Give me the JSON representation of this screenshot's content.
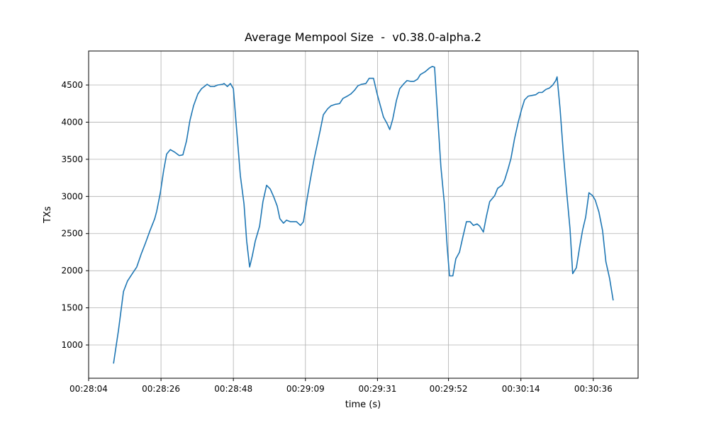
{
  "chart_data": {
    "type": "line",
    "title": "Average Mempool Size  -  v0.38.0-alpha.2",
    "x_label": "time (s)",
    "y_label": "TXs",
    "grid": true,
    "xlim": [
      1684,
      1849.5
    ],
    "ylim": [
      552,
      4958
    ],
    "xticks": [
      {
        "value": 1684,
        "label": "00:28:04"
      },
      {
        "value": 1705.8,
        "label": "00:28:26"
      },
      {
        "value": 1727.6,
        "label": "00:28:48"
      },
      {
        "value": 1749.3,
        "label": "00:29:09"
      },
      {
        "value": 1771,
        "label": "00:29:31"
      },
      {
        "value": 1792.4,
        "label": "00:29:52"
      },
      {
        "value": 1814.2,
        "label": "00:30:14"
      },
      {
        "value": 1836,
        "label": "00:30:36"
      }
    ],
    "yticks": [
      1000,
      1500,
      2000,
      2500,
      3000,
      3500,
      4000,
      4500
    ],
    "x": [
      1691.5,
      1693.0,
      1694.5,
      1695.7,
      1697.0,
      1698.5,
      1699.8,
      1701.1,
      1702.4,
      1703.9,
      1704.5,
      1705.6,
      1706.6,
      1707.5,
      1708.6,
      1709.8,
      1711.3,
      1712.4,
      1713.5,
      1714.5,
      1715.6,
      1716.9,
      1718.0,
      1719.7,
      1720.7,
      1721.8,
      1722.9,
      1724.4,
      1724.8,
      1725.8,
      1726.7,
      1727.6,
      1728.4,
      1729.7,
      1730.8,
      1731.6,
      1732.5,
      1733.3,
      1734.2,
      1735.5,
      1736.5,
      1737.6,
      1738.7,
      1739.7,
      1740.8,
      1741.6,
      1742.7,
      1743.6,
      1744.8,
      1746.6,
      1747.8,
      1748.7,
      1749.8,
      1750.8,
      1751.9,
      1753.0,
      1753.8,
      1754.7,
      1756.0,
      1757.0,
      1758.3,
      1759.6,
      1760.6,
      1761.9,
      1763.0,
      1764.1,
      1765.1,
      1766.2,
      1767.5,
      1768.5,
      1769.8,
      1770.9,
      1772.0,
      1772.8,
      1773.9,
      1774.7,
      1775.6,
      1776.7,
      1777.7,
      1778.8,
      1779.9,
      1780.9,
      1782.0,
      1783.1,
      1783.9,
      1785.4,
      1786.7,
      1787.5,
      1788.2,
      1789.0,
      1790.1,
      1791.2,
      1792.0,
      1792.7,
      1793.7,
      1794.6,
      1795.7,
      1796.7,
      1797.8,
      1798.9,
      1799.9,
      1801.0,
      1801.8,
      1802.9,
      1803.8,
      1804.8,
      1806.3,
      1807.2,
      1808.5,
      1809.3,
      1810.4,
      1811.2,
      1812.3,
      1813.4,
      1814.4,
      1815.3,
      1816.4,
      1817.6,
      1818.7,
      1819.6,
      1820.6,
      1821.7,
      1822.8,
      1823.8,
      1824.7,
      1825.1,
      1826.0,
      1827.0,
      1827.9,
      1829.0,
      1829.8,
      1830.9,
      1831.9,
      1832.8,
      1833.7,
      1834.7,
      1835.8,
      1836.6,
      1837.7,
      1838.8,
      1839.8,
      1840.9,
      1842.0
    ],
    "series": [
      {
        "name": "TXs",
        "color": "#1f77b4",
        "values": [
          750,
          1200,
          1720,
          1860,
          1950,
          2050,
          2220,
          2370,
          2530,
          2700,
          2800,
          3050,
          3350,
          3570,
          3630,
          3600,
          3550,
          3560,
          3750,
          4020,
          4220,
          4380,
          4450,
          4510,
          4480,
          4480,
          4500,
          4510,
          4520,
          4480,
          4520,
          4450,
          4000,
          3280,
          2900,
          2400,
          2050,
          2200,
          2400,
          2600,
          2930,
          3150,
          3100,
          3000,
          2870,
          2700,
          2640,
          2680,
          2660,
          2660,
          2610,
          2660,
          2970,
          3230,
          3500,
          3730,
          3900,
          4100,
          4180,
          4220,
          4240,
          4250,
          4320,
          4350,
          4380,
          4430,
          4490,
          4510,
          4520,
          4590,
          4590,
          4380,
          4200,
          4070,
          3980,
          3900,
          4040,
          4290,
          4450,
          4510,
          4560,
          4550,
          4550,
          4580,
          4640,
          4680,
          4730,
          4750,
          4740,
          4170,
          3400,
          2880,
          2320,
          1930,
          1930,
          2160,
          2250,
          2450,
          2660,
          2660,
          2610,
          2630,
          2600,
          2520,
          2730,
          2930,
          3010,
          3110,
          3150,
          3220,
          3380,
          3510,
          3780,
          4000,
          4170,
          4300,
          4350,
          4360,
          4370,
          4400,
          4400,
          4440,
          4460,
          4500,
          4560,
          4610,
          4180,
          3570,
          3100,
          2560,
          1960,
          2040,
          2320,
          2550,
          2720,
          3050,
          3010,
          2950,
          2790,
          2540,
          2120,
          1900,
          1600
        ]
      }
    ]
  }
}
